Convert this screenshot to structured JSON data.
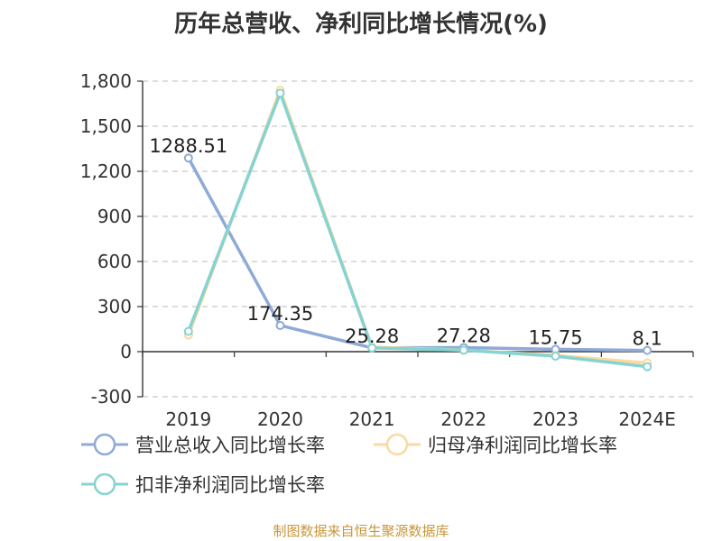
{
  "title": "历年总营收、净利同比增长情况(%)",
  "source": "制图数据来自恒生聚源数据库",
  "chart_data": {
    "type": "line",
    "title": "历年总营收、净利同比增长情况(%)",
    "categories": [
      "2019",
      "2020",
      "2021",
      "2022",
      "2023",
      "2024E"
    ],
    "ylim": [
      -300,
      1800
    ],
    "yticks": [
      -300,
      0,
      300,
      600,
      900,
      1200,
      1500,
      1800
    ],
    "ytick_labels": [
      "-300",
      "0",
      "300",
      "600",
      "900",
      "1,200",
      "1,500",
      "1,800"
    ],
    "grid": true,
    "legend_position": "bottom",
    "series": [
      {
        "name": "营业总收入同比增长率",
        "color": "#8eaad8",
        "values": [
          1288.51,
          174.35,
          25.28,
          27.28,
          15.75,
          8.1
        ],
        "labels": [
          "1288.51",
          "174.35",
          "25.28",
          "27.28",
          "15.75",
          "8.1"
        ]
      },
      {
        "name": "归母净利润同比增长率",
        "color": "#fcd9a0",
        "values": [
          110,
          1740,
          30,
          10,
          -25,
          -75
        ]
      },
      {
        "name": "扣非净利润同比增长率",
        "color": "#86d3d1",
        "values": [
          135,
          1720,
          25,
          10,
          -30,
          -100
        ]
      }
    ]
  }
}
